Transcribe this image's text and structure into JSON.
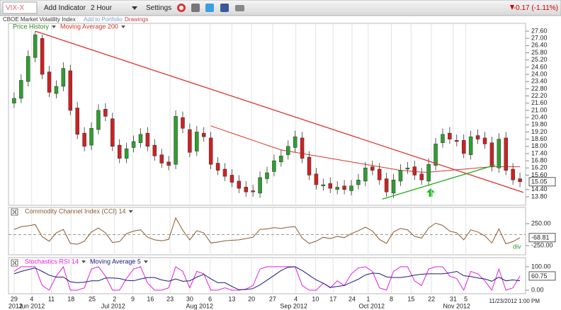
{
  "toolbar": {
    "symbol": "VIX-X",
    "add_indicator": "Add Indicator",
    "interval": "2 Hour",
    "settings": "Settings",
    "change": "-0.17 (-1.11%)",
    "name": "CBOE Market Volatility Index",
    "add_to_portfolio": "Add to Portfolio",
    "drawings": "Drawings"
  },
  "chart_data": [
    {
      "type": "candlestick",
      "name": "Price History",
      "name_color": "#2a8a2a",
      "up_color": "#2e9e2e",
      "down_color": "#cc2222",
      "open": [
        21.6,
        22.0,
        23.4,
        25.4,
        27.0,
        24.2,
        22.4,
        23.0,
        24.3,
        21.2,
        19.1,
        18.1,
        19.4,
        21.1,
        20.3,
        18.1,
        17.0,
        17.9,
        18.3,
        19.1,
        18.1,
        17.3,
        16.7,
        16.5,
        20.4,
        19.4,
        17.6,
        19.1,
        18.7,
        16.6,
        16.1,
        15.6,
        15.1,
        14.6,
        14.3,
        14.1,
        15.3,
        15.9,
        16.7,
        17.3,
        17.9,
        18.7,
        17.1,
        15.7,
        14.7,
        14.9,
        14.4,
        14.7,
        14.3,
        14.8,
        15.1,
        16.3,
        16.1,
        15.3,
        14.1,
        15.1,
        16.1,
        16.3,
        15.7,
        15.1,
        16.4,
        18.3,
        19.1,
        18.5,
        18.5,
        17.3,
        18.9,
        18.7,
        18.3,
        16.2,
        18.7,
        16.1,
        15.3
      ],
      "high": [
        22.5,
        24.0,
        26.0,
        27.6,
        27.3,
        24.7,
        23.5,
        25.0,
        24.8,
        21.7,
        19.6,
        20.0,
        21.5,
        21.6,
        20.8,
        18.6,
        18.3,
        18.9,
        19.5,
        19.6,
        18.6,
        17.8,
        17.2,
        21.0,
        20.9,
        19.9,
        19.7,
        19.6,
        19.2,
        17.1,
        16.6,
        16.1,
        15.6,
        15.1,
        14.8,
        15.9,
        16.3,
        17.3,
        17.7,
        18.5,
        19.3,
        19.2,
        17.6,
        16.2,
        15.3,
        15.4,
        15.1,
        15.2,
        15.2,
        15.7,
        16.7,
        16.8,
        16.6,
        15.8,
        15.7,
        16.5,
        16.7,
        16.8,
        16.2,
        17.0,
        18.7,
        19.5,
        19.6,
        19.0,
        19.0,
        19.3,
        19.4,
        19.2,
        18.8,
        19.1,
        19.2,
        16.6,
        15.8
      ],
      "low": [
        21.2,
        21.6,
        23.0,
        25.0,
        23.6,
        22.1,
        22.0,
        22.6,
        20.6,
        18.6,
        17.6,
        17.7,
        19.0,
        20.1,
        17.6,
        16.6,
        16.6,
        17.5,
        17.9,
        17.6,
        16.8,
        16.2,
        16.0,
        16.1,
        19.1,
        17.1,
        17.2,
        18.4,
        16.1,
        15.6,
        15.1,
        14.6,
        14.1,
        13.8,
        13.8,
        13.7,
        14.9,
        15.5,
        16.3,
        16.9,
        17.5,
        16.6,
        15.2,
        14.4,
        14.3,
        14.1,
        14.0,
        14.0,
        13.9,
        14.4,
        14.7,
        15.6,
        14.8,
        13.8,
        13.7,
        14.7,
        15.7,
        15.2,
        14.8,
        14.7,
        16.0,
        17.9,
        18.2,
        18.0,
        17.0,
        16.9,
        18.2,
        17.8,
        15.9,
        15.8,
        15.6,
        14.8,
        14.6
      ],
      "close": [
        22.0,
        23.5,
        25.5,
        27.3,
        24.0,
        22.5,
        23.0,
        24.5,
        21.0,
        19.0,
        18.0,
        19.5,
        21.0,
        20.5,
        18.0,
        17.0,
        17.8,
        18.4,
        19.0,
        18.0,
        17.2,
        16.6,
        16.4,
        20.5,
        19.5,
        17.5,
        19.2,
        18.8,
        16.5,
        16.0,
        15.5,
        15.0,
        14.5,
        14.2,
        14.2,
        15.4,
        15.8,
        16.8,
        17.2,
        18.0,
        18.8,
        17.0,
        15.6,
        14.8,
        14.8,
        14.5,
        14.6,
        14.4,
        14.7,
        15.2,
        16.2,
        16.0,
        15.2,
        14.2,
        15.2,
        16.0,
        16.2,
        15.6,
        15.2,
        16.5,
        18.2,
        19.0,
        18.6,
        18.4,
        17.4,
        18.8,
        18.6,
        18.2,
        16.3,
        18.6,
        16.0,
        15.2,
        15.05
      ],
      "overlays": [
        {
          "name": "Moving Average 200",
          "color": "#d9342b",
          "values": [
            null,
            null,
            null,
            null,
            null,
            null,
            null,
            null,
            null,
            null,
            null,
            null,
            null,
            null,
            null,
            null,
            null,
            null,
            null,
            null,
            null,
            null,
            null,
            null,
            null,
            null,
            null,
            null,
            19.7,
            19.5,
            19.3,
            19.1,
            18.9,
            18.7,
            18.5,
            18.3,
            18.1,
            17.9,
            17.7,
            17.6,
            17.5,
            17.4,
            17.3,
            17.2,
            17.1,
            17.0,
            16.9,
            16.8,
            16.7,
            16.6,
            16.5,
            16.4,
            16.3,
            16.2,
            16.1,
            16.0,
            15.95,
            15.9,
            15.85,
            15.85,
            15.9,
            15.95,
            16.0,
            16.05,
            16.1,
            16.15,
            16.2,
            16.25,
            16.3,
            16.3,
            16.3,
            16.3,
            16.3
          ]
        }
      ],
      "drawings": [
        {
          "color": "#e03030",
          "x": [
            3.0,
            72.5
          ],
          "y": [
            27.6,
            14.16
          ]
        },
        {
          "color": "#22aa22",
          "x": [
            52.4,
            68.5
          ],
          "y": [
            13.6,
            16.45
          ]
        }
      ],
      "xlim": [
        -0.8,
        72.8
      ],
      "ylim": [
        13.09,
        28.25
      ],
      "yticks": [
        {
          "value": 27.6,
          "label": "27.60"
        },
        {
          "value": 27.0,
          "label": "27.00"
        },
        {
          "value": 26.4,
          "label": "26.40"
        },
        {
          "value": 25.8,
          "label": "25.80"
        },
        {
          "value": 25.2,
          "label": "25.20"
        },
        {
          "value": 24.6,
          "label": "24.60"
        },
        {
          "value": 24.0,
          "label": "24.00"
        },
        {
          "value": 23.4,
          "label": "23.40"
        },
        {
          "value": 22.8,
          "label": "22.80"
        },
        {
          "value": 22.2,
          "label": "22.20"
        },
        {
          "value": 21.6,
          "label": "21.60"
        },
        {
          "value": 21.0,
          "label": "21.00"
        },
        {
          "value": 20.4,
          "label": "20.40"
        },
        {
          "value": 19.8,
          "label": "19.80"
        },
        {
          "value": 19.2,
          "label": "19.20"
        },
        {
          "value": 18.6,
          "label": "18.60"
        },
        {
          "value": 18.0,
          "label": "18.00"
        },
        {
          "value": 17.4,
          "label": "17.40"
        },
        {
          "value": 16.8,
          "label": "16.80"
        },
        {
          "value": 16.2,
          "label": "16.20"
        },
        {
          "value": 15.6,
          "label": "15.60"
        },
        {
          "value": 14.4,
          "label": "14.40"
        },
        {
          "value": 13.8,
          "label": "13.80"
        }
      ]
    },
    {
      "type": "line",
      "series": [
        {
          "name": "Commodity Channel Index (CCI) 14",
          "color": "#8b5a2b",
          "values": [
            120,
            180,
            200,
            230,
            -50,
            -150,
            40,
            120,
            -200,
            -220,
            -150,
            60,
            150,
            40,
            -180,
            -160,
            20,
            80,
            110,
            -60,
            -120,
            -140,
            -110,
            380,
            100,
            -120,
            90,
            40,
            -190,
            -170,
            -140,
            -130,
            -120,
            -90,
            -60,
            120,
            130,
            160,
            140,
            170,
            180,
            -80,
            -200,
            -150,
            -60,
            -90,
            -40,
            -70,
            20,
            90,
            170,
            80,
            -110,
            -200,
            60,
            140,
            110,
            -40,
            -80,
            150,
            260,
            210,
            80,
            40,
            -120,
            110,
            60,
            -30,
            -190,
            130,
            -210,
            -160,
            -68.81
          ]
        }
      ],
      "annotation": "div",
      "annotation_color": "#2a9a2a",
      "zero_line": true,
      "xlim": [
        -0.8,
        72.8
      ],
      "ylim": [
        -460,
        621
      ],
      "yticks": [
        {
          "value": 250,
          "label": "250.00"
        },
        {
          "value": -250,
          "label": "-250.00"
        }
      ]
    },
    {
      "type": "line",
      "series": [
        {
          "name": "Stochastics RSI 14",
          "color": "#e020e0",
          "values": [
            80,
            100,
            100,
            100,
            20,
            0,
            60,
            100,
            0,
            0,
            10,
            90,
            100,
            60,
            0,
            0,
            50,
            90,
            100,
            30,
            0,
            0,
            10,
            100,
            80,
            10,
            80,
            70,
            0,
            0,
            10,
            0,
            0,
            5,
            20,
            90,
            100,
            100,
            100,
            100,
            100,
            20,
            0,
            0,
            30,
            10,
            40,
            20,
            70,
            95,
            100,
            80,
            10,
            0,
            80,
            100,
            100,
            40,
            20,
            90,
            100,
            100,
            60,
            50,
            0,
            80,
            70,
            40,
            0,
            90,
            0,
            10,
            60.75
          ]
        },
        {
          "name": "Moving Average 5",
          "color": "#1a1a80",
          "values": [
            70,
            80,
            88,
            95,
            80,
            64,
            56,
            56,
            36,
            32,
            34,
            40,
            40,
            52,
            52,
            50,
            42,
            40,
            48,
            54,
            54,
            44,
            38,
            48,
            38,
            40,
            56,
            68,
            48,
            32,
            32,
            16,
            2,
            3,
            7,
            23,
            43,
            63,
            84,
            98,
            100,
            84,
            64,
            44,
            30,
            12,
            16,
            20,
            34,
            47,
            65,
            73,
            71,
            57,
            54,
            54,
            58,
            64,
            68,
            70,
            70,
            70,
            74,
            80,
            62,
            58,
            52,
            48,
            38,
            56,
            40,
            44,
            40
          ]
        }
      ],
      "xlim": [
        -0.8,
        72.8
      ],
      "ylim": [
        -15,
        139
      ],
      "yticks": [
        {
          "value": 100,
          "label": "100.00"
        },
        {
          "value": 0,
          "label": "0.00"
        }
      ],
      "xticks": [
        {
          "value": 0.0,
          "label": "29"
        },
        {
          "value": 2.5,
          "label": "4"
        },
        {
          "value": 5.3,
          "label": "11"
        },
        {
          "value": 8.1,
          "label": "18"
        },
        {
          "value": 11.1,
          "label": "25"
        },
        {
          "value": 14.3,
          "label": "2"
        },
        {
          "value": 16.9,
          "label": "9"
        },
        {
          "value": 19.4,
          "label": "16"
        },
        {
          "value": 22.2,
          "label": "23"
        },
        {
          "value": 25.0,
          "label": "30"
        },
        {
          "value": 27.9,
          "label": "6"
        },
        {
          "value": 31.0,
          "label": "13"
        },
        {
          "value": 33.8,
          "label": "20"
        },
        {
          "value": 36.8,
          "label": "27"
        },
        {
          "value": 40.1,
          "label": "4"
        },
        {
          "value": 42.9,
          "label": "10"
        },
        {
          "value": 45.4,
          "label": "17"
        },
        {
          "value": 48.1,
          "label": "24"
        },
        {
          "value": 50.4,
          "label": "1"
        },
        {
          "value": 53.7,
          "label": "8"
        },
        {
          "value": 56.5,
          "label": "15"
        },
        {
          "value": 59.4,
          "label": "22"
        },
        {
          "value": 62.5,
          "label": "31"
        },
        {
          "value": 64.3,
          "label": "5"
        }
      ],
      "month_labels": [
        {
          "value": 0.2,
          "label": "2012"
        },
        {
          "value": 2.5,
          "label": "Jun 2012"
        },
        {
          "value": 14.1,
          "label": "Jul 2012"
        },
        {
          "value": 26.4,
          "label": "Aug 2012"
        },
        {
          "value": 39.8,
          "label": "Sep 2012"
        },
        {
          "value": 50.9,
          "label": "Oct 2012"
        },
        {
          "value": 63.0,
          "label": "Nov 2012"
        }
      ],
      "timestamp": "11/23/2012 1:00 PM"
    }
  ]
}
